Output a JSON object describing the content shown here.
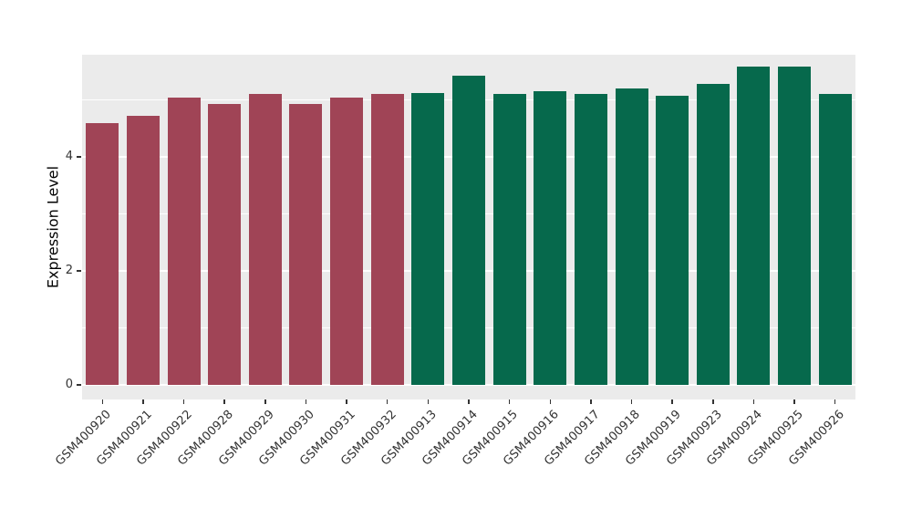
{
  "chart_data": {
    "type": "bar",
    "title": "",
    "xlabel": "",
    "ylabel": "Expression Level",
    "legend_position": "none",
    "grid": true,
    "panel_background": "#EBEBEB",
    "grid_color": "#FFFFFF",
    "ylim": [
      0,
      5.8
    ],
    "yticks": [
      0,
      2,
      4
    ],
    "yticks_minor": [
      1,
      3,
      5
    ],
    "categories": [
      "GSM400920",
      "GSM400921",
      "GSM400922",
      "GSM400928",
      "GSM400929",
      "GSM400930",
      "GSM400931",
      "GSM400932",
      "GSM400913",
      "GSM400914",
      "GSM400915",
      "GSM400916",
      "GSM400917",
      "GSM400918",
      "GSM400919",
      "GSM400923",
      "GSM400924",
      "GSM400925",
      "GSM400926"
    ],
    "values": [
      4.6,
      4.72,
      5.04,
      4.93,
      5.1,
      4.93,
      5.04,
      5.1,
      5.12,
      5.42,
      5.1,
      5.15,
      5.1,
      5.2,
      5.08,
      5.28,
      5.58,
      5.58,
      5.1
    ],
    "bar_groups": [
      "group1",
      "group1",
      "group1",
      "group1",
      "group1",
      "group1",
      "group1",
      "group1",
      "group2",
      "group2",
      "group2",
      "group2",
      "group2",
      "group2",
      "group2",
      "group2",
      "group2",
      "group2",
      "group2"
    ],
    "group_colors": {
      "group1": "#A04456",
      "group2": "#06694C"
    }
  }
}
